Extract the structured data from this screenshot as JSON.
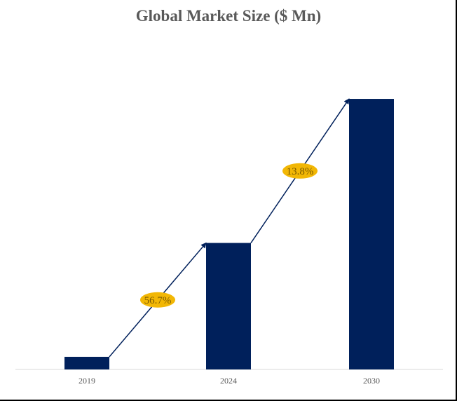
{
  "chart_data": {
    "type": "bar",
    "title": "Global Market Size ($ Mn)",
    "categories": [
      "2019",
      "2024",
      "2030"
    ],
    "values": [
      18,
      180,
      385
    ],
    "ylim": [
      0,
      400
    ],
    "grid": false,
    "annotations": [
      {
        "label": "56.7%",
        "from": "2019",
        "to": "2024"
      },
      {
        "label": "13.8%",
        "from": "2024",
        "to": "2030"
      }
    ],
    "colors": {
      "bar": "#00205b",
      "badge": "#f2b705",
      "badge_text": "#7a5a00",
      "arrow": "#00205b"
    }
  }
}
